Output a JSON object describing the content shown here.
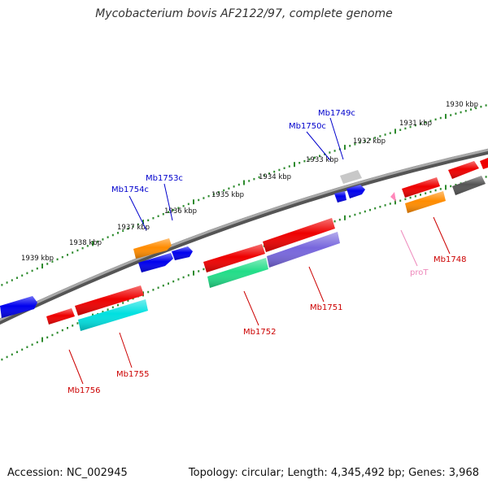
{
  "title": "Mycobacterium bovis AF2122/97, complete genome",
  "footer": {
    "accession": "Accession: NC_002945",
    "summary": "Topology: circular; Length: 4,345,492 bp; Genes: 3,968"
  },
  "colors": {
    "backbone": "#808080",
    "ticks": "#2e8b2e",
    "label_blue": "#0000cc",
    "label_red": "#cc0000",
    "label_pink": "#ee88bb"
  },
  "scale_labels": [
    "1930 kbp",
    "1931 kbp",
    "1932 kbp",
    "1933 kbp",
    "1934 kbp",
    "1935 kbp",
    "1936 kbp",
    "1937 kbp",
    "1938 kbp",
    "1939 kbp"
  ],
  "gene_labels": {
    "mb1749c": "Mb1749c",
    "mb1750c": "Mb1750c",
    "mb1753c": "Mb1753c",
    "mb1754c": "Mb1754c",
    "mb1748": "Mb1748",
    "mb1751": "Mb1751",
    "mb1752": "Mb1752",
    "mb1755": "Mb1755",
    "mb1756": "Mb1756",
    "prot": "proT"
  }
}
